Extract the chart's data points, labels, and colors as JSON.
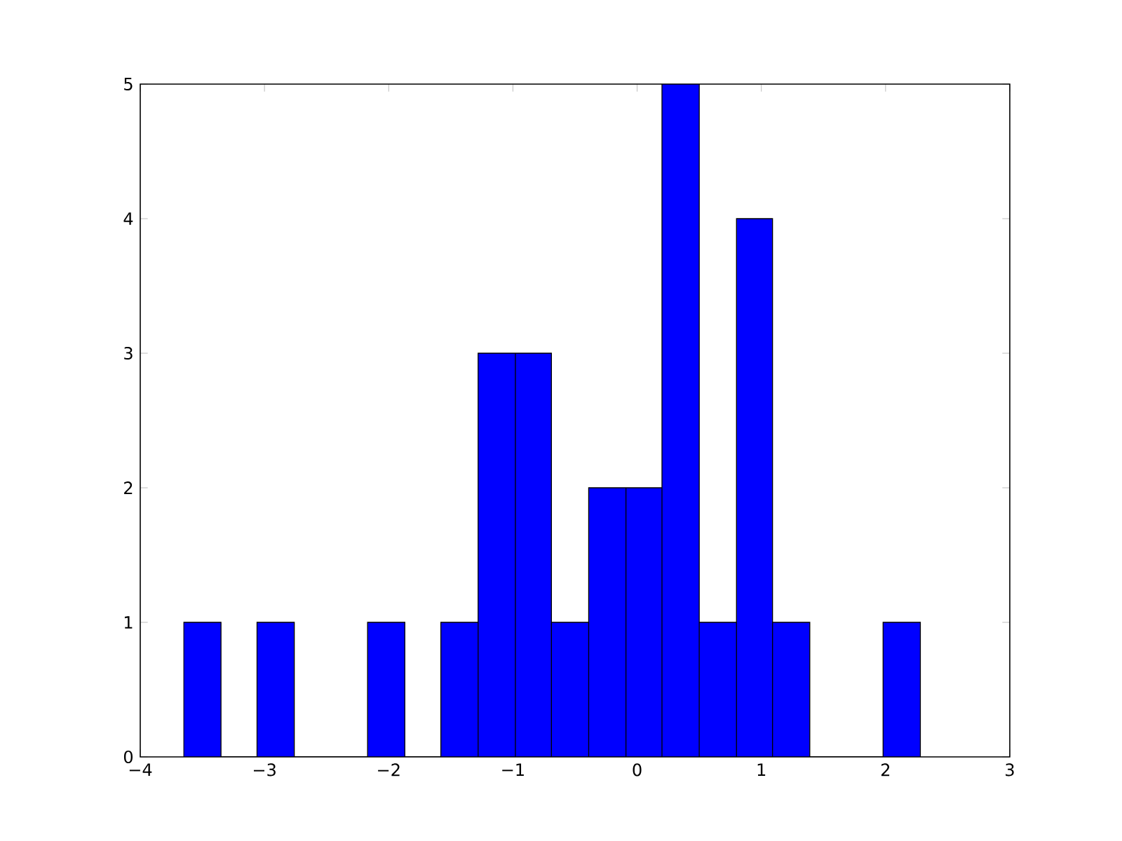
{
  "chart_data": {
    "type": "histogram",
    "bins": [
      -3.65,
      -3.35,
      -3.06,
      -2.76,
      -2.17,
      -1.87,
      -1.58,
      -1.28,
      -0.98,
      -0.69,
      -0.39,
      -0.09,
      0.2,
      0.5,
      0.8,
      1.09,
      1.39,
      1.98,
      2.28
    ],
    "values": [
      1,
      0,
      1,
      0,
      1,
      0,
      1,
      3,
      3,
      1,
      2,
      2,
      5,
      1,
      4,
      1,
      0,
      1
    ],
    "color": "#0000ff",
    "xlim": [
      -4,
      3
    ],
    "xticks": [
      {
        "value": -4,
        "label": "−4"
      },
      {
        "value": -3,
        "label": "−3"
      },
      {
        "value": -2,
        "label": "−2"
      },
      {
        "value": -1,
        "label": "−1"
      },
      0,
      1,
      2,
      3
    ],
    "ylim": [
      0,
      5
    ],
    "yticks": [
      0,
      1,
      2,
      3,
      4,
      5
    ],
    "grid": false
  }
}
